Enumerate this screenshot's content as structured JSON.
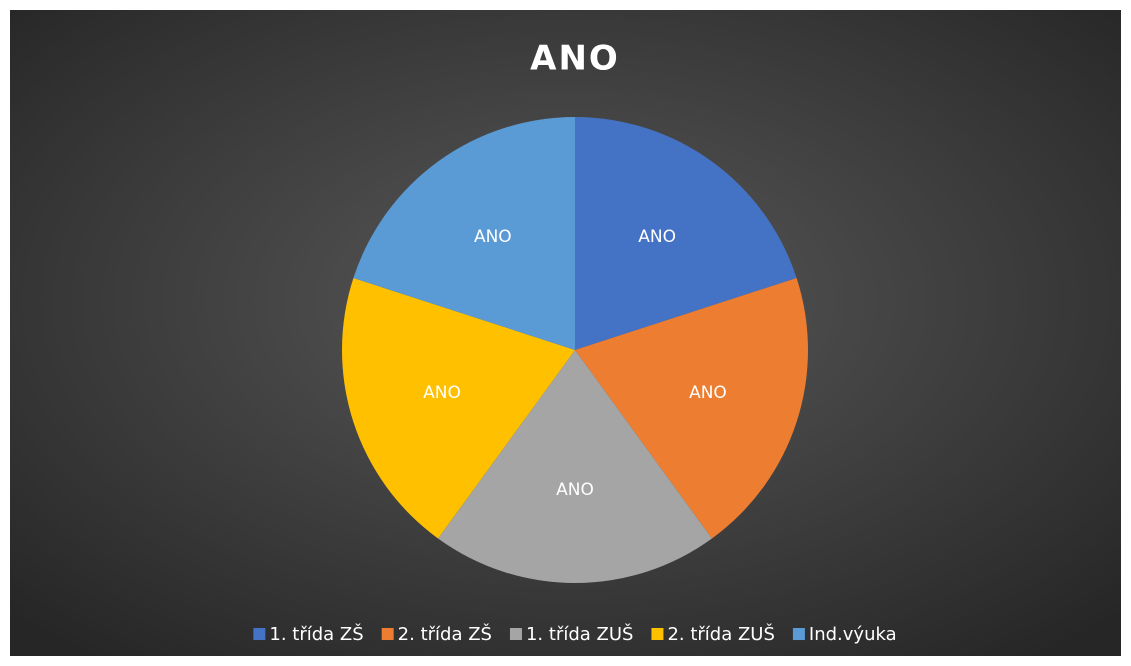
{
  "chart_data": {
    "type": "pie",
    "title": "ANO",
    "categories": [
      "1. třída ZŠ",
      "2. třída ZŠ",
      "1. třída ZUŠ",
      "2. třída ZUŠ",
      "Ind.výuka"
    ],
    "values": [
      20,
      20,
      20,
      20,
      20
    ],
    "value_labels": [
      "ANO",
      "ANO",
      "ANO",
      "ANO",
      "ANO"
    ],
    "colors": [
      "#4472c4",
      "#ed7d31",
      "#a5a5a5",
      "#ffc000",
      "#5b9bd5"
    ],
    "legend": "bottom"
  }
}
